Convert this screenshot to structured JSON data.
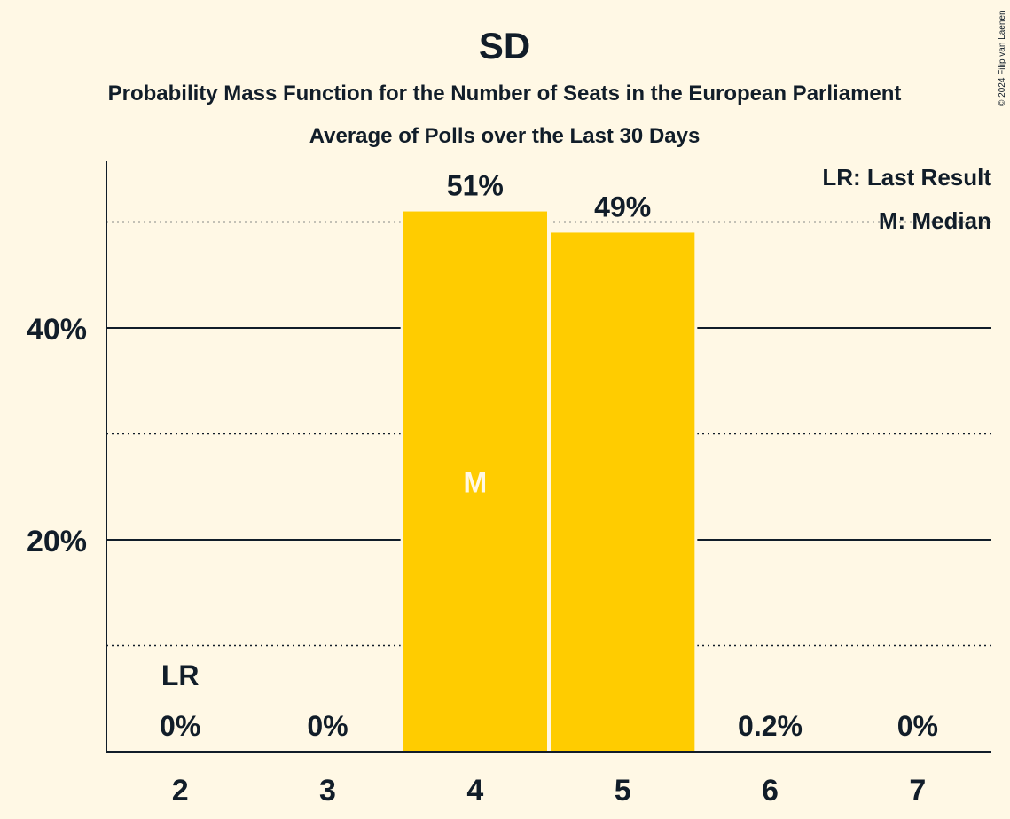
{
  "chart_data": {
    "type": "bar",
    "title": "SD",
    "subtitle": "Probability Mass Function for the Number of Seats in the European Parliament",
    "subtitle2": "Average of Polls over the Last 30 Days",
    "categories": [
      "2",
      "3",
      "4",
      "5",
      "6",
      "7"
    ],
    "values": [
      0,
      0,
      51,
      49,
      0.2,
      0
    ],
    "value_labels": [
      "0%",
      "0%",
      "51%",
      "49%",
      "0.2%",
      "0%"
    ],
    "ylim": [
      0,
      55
    ],
    "y_major_ticks": [
      20,
      40
    ],
    "y_tick_labels": [
      "20%",
      "40%"
    ],
    "y_minor_ticks": [
      10,
      30,
      50
    ],
    "last_result_category": "2",
    "last_result_marker": "LR",
    "median_category": "4",
    "median_marker": "M",
    "legend": [
      "LR: Last Result",
      "M: Median"
    ],
    "legend_position": "top-right",
    "bar_color": "#FFCC00",
    "background": "#FFF8E5",
    "text_color": "#111d29"
  },
  "credit": "© 2024 Filip van Laenen"
}
